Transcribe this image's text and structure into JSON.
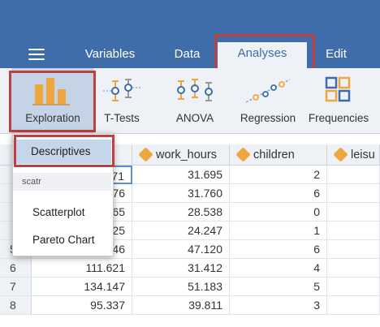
{
  "header": {
    "tabs": [
      {
        "label": "Variables"
      },
      {
        "label": "Data"
      },
      {
        "label": "Analyses"
      },
      {
        "label": "Edit"
      }
    ]
  },
  "ribbon": {
    "buttons": [
      {
        "label": "Exploration",
        "icon": "exploration-bars-icon"
      },
      {
        "label": "T-Tests",
        "icon": "ttests-icon"
      },
      {
        "label": "ANOVA",
        "icon": "anova-icon"
      },
      {
        "label": "Regression",
        "icon": "regression-icon"
      },
      {
        "label": "Frequencies",
        "icon": "frequencies-icon"
      }
    ]
  },
  "menu": {
    "items": [
      {
        "label": "Descriptives"
      }
    ],
    "section": "scatr",
    "scatr_items": [
      {
        "label": "Scatterplot"
      },
      {
        "label": "Pareto Chart"
      }
    ]
  },
  "grid": {
    "columns": [
      {
        "name": "work_hours"
      },
      {
        "name": "children"
      },
      {
        "name": "leisu"
      }
    ],
    "rows": [
      {
        "num": "",
        "c0": "71",
        "work_hours": "31.695",
        "children": "2"
      },
      {
        "num": "",
        "c0": "76",
        "work_hours": "31.760",
        "children": "6"
      },
      {
        "num": "",
        "c0": "65",
        "work_hours": "28.538",
        "children": "0"
      },
      {
        "num": "",
        "c0": "25",
        "work_hours": "24.247",
        "children": "1"
      },
      {
        "num": "5",
        "c0": "62.946",
        "work_hours": "47.120",
        "children": "6"
      },
      {
        "num": "6",
        "c0": "111.621",
        "work_hours": "31.412",
        "children": "4"
      },
      {
        "num": "7",
        "c0": "134.147",
        "work_hours": "51.183",
        "children": "5"
      },
      {
        "num": "8",
        "c0": "95.337",
        "work_hours": "39.811",
        "children": "3"
      }
    ]
  },
  "colors": {
    "brand": "#3e6da9",
    "highlight": "#c0403f",
    "ribbon": "#eef1f6",
    "selection": "#c5d6ea"
  }
}
